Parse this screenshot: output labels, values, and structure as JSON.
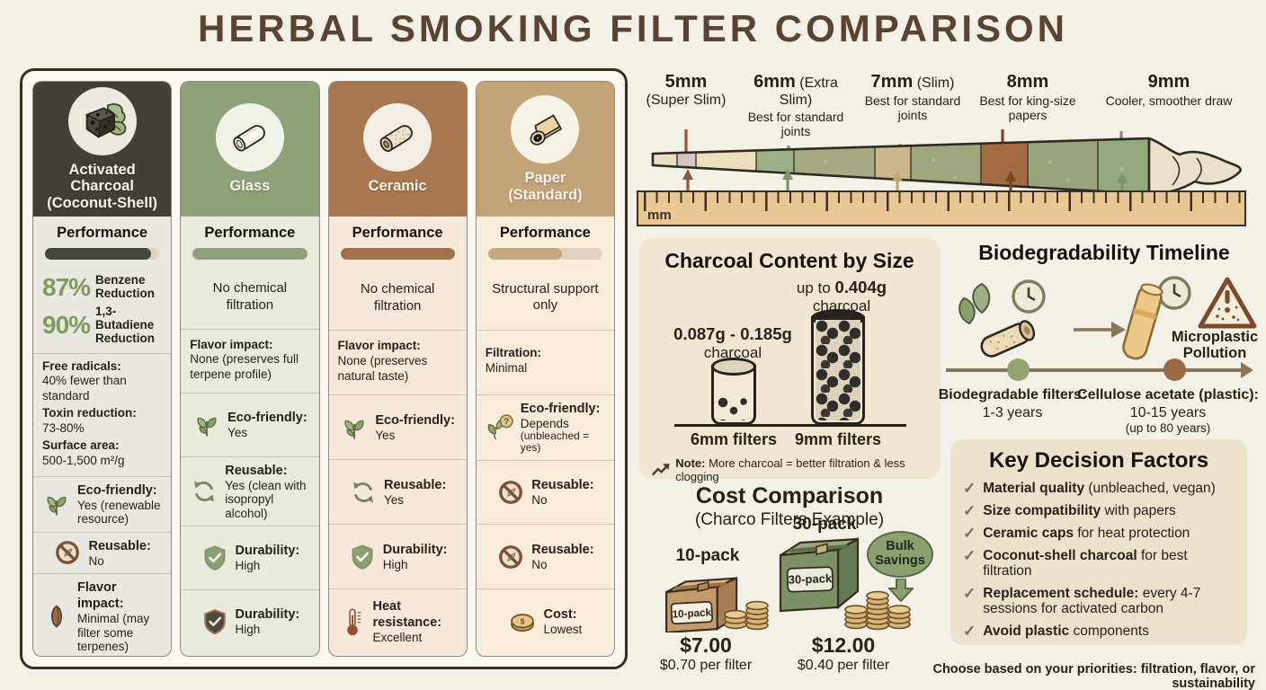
{
  "page": {
    "title": "HERBAL SMOKING FILTER COMPARISON",
    "footer": "Choose based on your priorities: filtration, flavor, or sustainability"
  },
  "colors": {
    "accent_green": "#7d9c5a",
    "charcoal_dark": "#403f39",
    "sage": "#90a07a",
    "ceramic_brown": "#a8764f",
    "paper_tan": "#c3a478"
  },
  "columns": [
    {
      "icon": "charcoal-cube-icon",
      "name_line1": "Activated Charcoal",
      "name_line2": "(Coconut-Shell)",
      "performance_label": "Performance",
      "performance_pct": 93,
      "stats": [
        {
          "value": "87%",
          "label": "Benzene Reduction"
        },
        {
          "value": "90%",
          "label": "1,3-Butadiene Reduction"
        }
      ],
      "details": [
        {
          "bold": "Free radicals:",
          "text": "40% fewer than standard"
        },
        {
          "bold": "Toxin reduction:",
          "text": "73-80%"
        },
        {
          "bold": "Surface area:",
          "text": "500-1,500 m²/g"
        }
      ],
      "features": [
        {
          "icon": "leaf-icon",
          "label": "Eco-friendly:",
          "value": "Yes (renewable resource)"
        },
        {
          "icon": "no-symbol-icon",
          "label": "Reusable:",
          "value": "No"
        },
        {
          "icon": "seed-icon",
          "label": "Flavor impact:",
          "value": "Minimal (may filter some terpenes)"
        }
      ]
    },
    {
      "icon": "glass-tube-icon",
      "name_line1": "Glass",
      "performance_label": "Performance",
      "performance_pct": 100,
      "performance_note": "No chemical filtration",
      "details": [
        {
          "bold": "Flavor impact:",
          "text": "None (preserves full terpene profile)"
        }
      ],
      "features": [
        {
          "icon": "leaf-icon",
          "label": "Eco-friendly:",
          "value": "Yes"
        },
        {
          "icon": "recycle-icon",
          "label": "Reusable:",
          "value": "Yes (clean with isopropyl alcohol)"
        },
        {
          "icon": "shield-check-green-icon",
          "label": "Durability:",
          "value": "High"
        },
        {
          "icon": "shield-check-dark-icon",
          "label": "Durability:",
          "value": "High"
        }
      ]
    },
    {
      "icon": "ceramic-cylinder-icon",
      "name_line1": "Ceramic",
      "performance_label": "Performance",
      "performance_pct": 100,
      "performance_note": "No chemical filtration",
      "details": [
        {
          "bold": "Flavor impact:",
          "text": "None (preserves natural taste)"
        }
      ],
      "features": [
        {
          "icon": "leaf-icon",
          "label": "Eco-friendly:",
          "value": "Yes"
        },
        {
          "icon": "recycle-icon",
          "label": "Reusable:",
          "value": "Yes"
        },
        {
          "icon": "shield-check-green-icon",
          "label": "Durability:",
          "value": "High"
        },
        {
          "icon": "thermometer-icon",
          "label": "Heat resistance:",
          "value": "Excellent"
        }
      ]
    },
    {
      "icon": "paper-roll-icon",
      "name_line1": "Paper",
      "name_line2": "(Standard)",
      "performance_label": "Performance",
      "performance_pct": 65,
      "performance_note": "Structural support only",
      "details": [
        {
          "bold": "Filtration:",
          "text": "Minimal"
        }
      ],
      "features": [
        {
          "icon": "leaf-question-icon",
          "label": "Eco-friendly:",
          "value": "Depends",
          "note": "(unbleached = yes)"
        },
        {
          "icon": "no-symbol-icon",
          "label": "Reusable:",
          "value": "No"
        },
        {
          "icon": "no-symbol-icon",
          "label": "Reusable:",
          "value": "No"
        },
        {
          "icon": "coin-icon",
          "label": "Cost:",
          "value": "Lowest"
        }
      ]
    }
  ],
  "size_guide": {
    "ruler_unit": "mm",
    "items": [
      {
        "size": "5mm",
        "tag": "(Super Slim)",
        "desc": ""
      },
      {
        "size": "6mm",
        "tag": "(Extra Slim)",
        "desc": "Best for standard joints"
      },
      {
        "size": "7mm",
        "tag": "(Slim)",
        "desc": "Best for standard joints"
      },
      {
        "size": "8mm",
        "tag": "",
        "desc": "Best for king-size papers"
      },
      {
        "size": "9mm",
        "tag": "",
        "desc": "Cooler, smoother draw"
      }
    ]
  },
  "charcoal_panel": {
    "title": "Charcoal Content by Size",
    "large_prefix": "up to ",
    "large_amount": "0.404g",
    "large_word": "charcoal",
    "small_amount": "0.087g - 0.185g",
    "small_word": "charcoal",
    "small_label": "6mm filters",
    "large_label": "9mm filters",
    "note_bold": "Note:",
    "note_text": "More charcoal = better filtration & less clogging"
  },
  "biodegradability": {
    "title": "Biodegradability Timeline",
    "warning_line1": "Microplastic",
    "warning_line2": "Pollution",
    "left_bold": "Biodegradable filters:",
    "left_text": "1-3 years",
    "right_bold": "Cellulose acetate (plastic):",
    "right_text": "10-15 years",
    "right_sub": "(up to 80 years)"
  },
  "key_factors": {
    "title": "Key Decision Factors",
    "items": [
      {
        "bold": "Material quality",
        "rest": " (unbleached, vegan)"
      },
      {
        "bold": "Size compatibility",
        "rest": " with papers"
      },
      {
        "bold": "Ceramic caps",
        "rest": " for heat protection"
      },
      {
        "bold": "Coconut-shell charcoal",
        "rest": " for best filtration"
      },
      {
        "bold": "Replacement schedule:",
        "rest": " every 4-7 sessions for activated carbon"
      },
      {
        "bold": "Avoid plastic",
        "rest": " components"
      }
    ]
  },
  "cost": {
    "title": "Cost Comparison",
    "subtitle": "(Charco Filters Example)",
    "packs": [
      {
        "name": "10-pack",
        "box_label": "10-pack",
        "price": "$7.00",
        "per": "$0.70 per filter"
      },
      {
        "name": "30-pack",
        "box_label": "30-pack",
        "price": "$12.00",
        "per": "$0.40 per filter"
      }
    ],
    "badge_line1": "Bulk",
    "badge_line2": "Savings"
  }
}
